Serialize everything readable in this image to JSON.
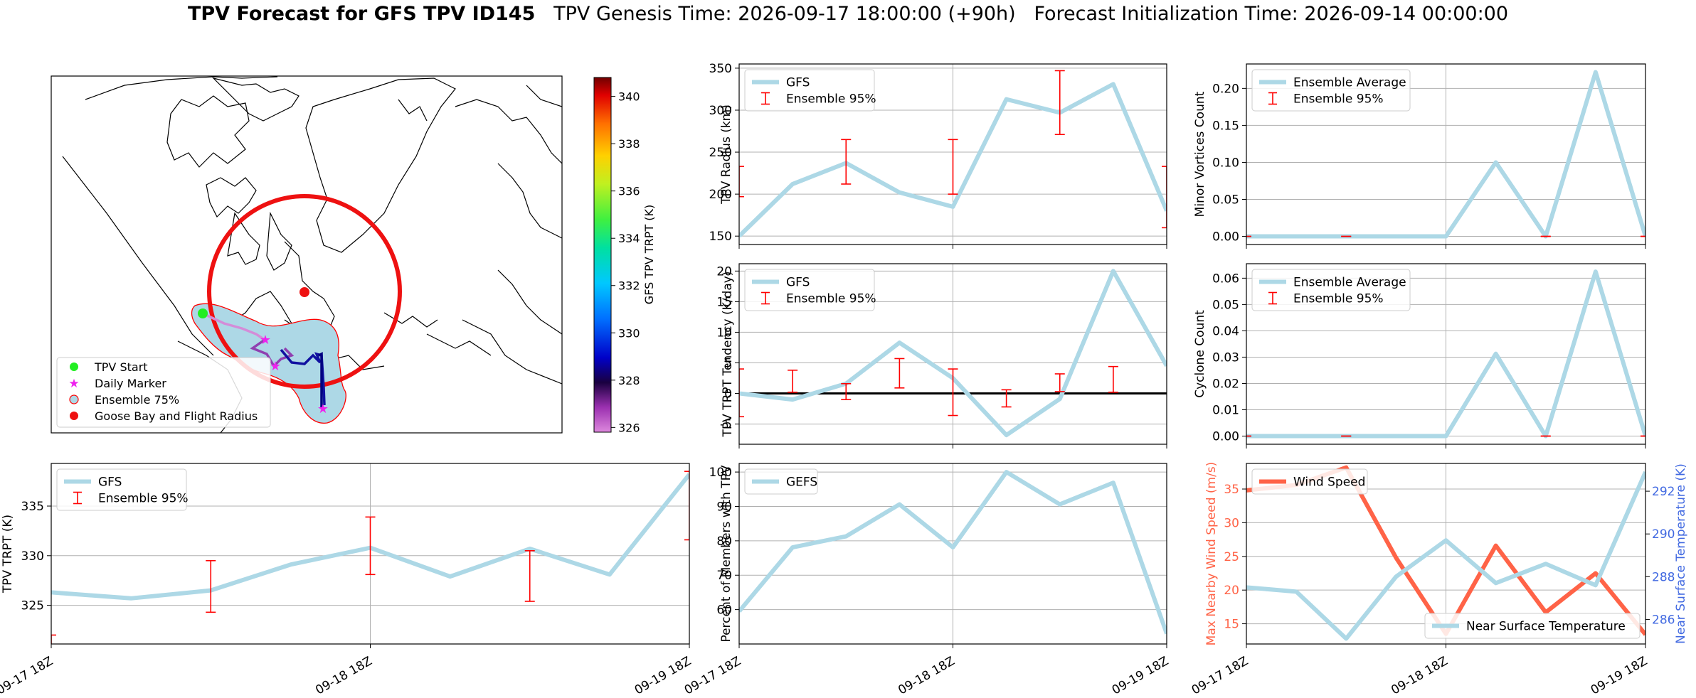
{
  "figure": {
    "title_bold": "TPV Forecast for GFS TPV ID145",
    "title_genesis": "TPV Genesis Time: 2026-09-17 18:00:00 (+90h)",
    "title_init": "Forecast Initialization Time: 2026-09-14 00:00:00"
  },
  "colors": {
    "gfs_line": "#add8e6",
    "errorbar": "#ff0000",
    "wind_line": "#ff6347",
    "temp_label": "#4169e1"
  },
  "map": {
    "colorbar_label": "GFS TPV TRPT (K)",
    "colorbar_ticks": [
      "340",
      "338",
      "336",
      "334",
      "332",
      "330",
      "328",
      "326"
    ],
    "colorbar_range": [
      325.8,
      340.8
    ],
    "legend": [
      "TPV Start",
      "Daily Marker",
      "Ensemble 75%",
      "Goose Bay and Flight Radius"
    ],
    "icons": [
      "coastline-map",
      "green-start-dot",
      "magenta-star-marker",
      "red-circle-marker"
    ]
  },
  "chart_data": [
    {
      "id": "radius",
      "type": "line",
      "ylabel": "TPV Radius (km)",
      "ylim": [
        140,
        355
      ],
      "yticks": [
        150,
        200,
        250,
        300,
        350
      ],
      "xlim": [
        0,
        8
      ],
      "xticks": [
        0,
        4,
        8
      ],
      "xtick_labels": [
        "",
        "",
        ""
      ],
      "grid": true,
      "legend_placement": "upper-left",
      "series": [
        {
          "name": "GFS",
          "kind": "line",
          "x": [
            0,
            1,
            2,
            3,
            4,
            5,
            6,
            7,
            8
          ],
          "values": [
            150,
            212,
            237,
            202,
            185,
            313,
            297,
            331,
            180
          ]
        },
        {
          "name": "Ensemble 95%",
          "kind": "errorbar",
          "points": [
            {
              "x": 0,
              "low": 197,
              "high": 233
            },
            {
              "x": 2,
              "low": 212,
              "high": 265
            },
            {
              "x": 4,
              "low": 200,
              "high": 265
            },
            {
              "x": 6,
              "low": 271,
              "high": 347
            },
            {
              "x": 8,
              "low": 160,
              "high": 233
            }
          ]
        }
      ]
    },
    {
      "id": "minor",
      "type": "line",
      "ylabel": "Minor Vortices Count",
      "ylim": [
        -0.011,
        0.233
      ],
      "yticks": [
        0.0,
        0.05,
        0.1,
        0.15,
        0.2
      ],
      "ytick_labels": [
        "0.00",
        "0.05",
        "0.10",
        "0.15",
        "0.20"
      ],
      "xlim": [
        0,
        8
      ],
      "xticks": [
        0,
        4,
        8
      ],
      "xtick_labels": [
        "",
        "",
        ""
      ],
      "grid": true,
      "legend_placement": "upper-left",
      "series": [
        {
          "name": "Ensemble Average",
          "kind": "line",
          "x": [
            0,
            1,
            2,
            3,
            4,
            5,
            6,
            7,
            8
          ],
          "values": [
            0,
            0,
            0,
            0,
            0,
            0.1,
            0,
            0.222,
            0
          ]
        },
        {
          "name": "Ensemble 95%",
          "kind": "errorbar",
          "points": [
            {
              "x": 0,
              "low": 0,
              "high": 0
            },
            {
              "x": 2,
              "low": 0,
              "high": 0
            },
            {
              "x": 6,
              "low": 0,
              "high": 0
            },
            {
              "x": 8,
              "low": 0,
              "high": 0
            }
          ]
        }
      ]
    },
    {
      "id": "tendency",
      "type": "line",
      "ylabel": "TPV TRPT Tendency (K/day)",
      "ylim": [
        -8.3,
        21.2
      ],
      "yticks": [
        -5,
        0,
        5,
        10,
        15,
        20
      ],
      "xlim": [
        0,
        8
      ],
      "xticks": [
        0,
        4,
        8
      ],
      "xtick_labels": [
        "",
        "",
        ""
      ],
      "zero_line": 0,
      "grid": true,
      "legend_placement": "upper-left",
      "series": [
        {
          "name": "GFS",
          "kind": "line",
          "x": [
            0,
            1,
            2,
            3,
            4,
            5,
            6,
            7,
            8
          ],
          "values": [
            0,
            -1,
            1.6,
            8.3,
            2.5,
            -6.8,
            -0.9,
            20,
            4.5
          ]
        },
        {
          "name": "Ensemble 95%",
          "kind": "errorbar",
          "points": [
            {
              "x": 0,
              "low": -3.8,
              "high": 4.0
            },
            {
              "x": 1,
              "low": 0.2,
              "high": 3.8
            },
            {
              "x": 2,
              "low": -1.0,
              "high": 1.6
            },
            {
              "x": 3,
              "low": 0.9,
              "high": 5.7
            },
            {
              "x": 4,
              "low": -3.6,
              "high": 4.0
            },
            {
              "x": 5,
              "low": -2.2,
              "high": 0.6
            },
            {
              "x": 6,
              "low": 0.3,
              "high": 3.2
            },
            {
              "x": 7,
              "low": 0.2,
              "high": 4.4
            }
          ]
        }
      ]
    },
    {
      "id": "cyclone",
      "type": "line",
      "ylabel": "Cyclone Count",
      "ylim": [
        -0.0031,
        0.0655
      ],
      "yticks": [
        0.0,
        0.01,
        0.02,
        0.03,
        0.04,
        0.05,
        0.06
      ],
      "ytick_labels": [
        "0.00",
        "0.01",
        "0.02",
        "0.03",
        "0.04",
        "0.05",
        "0.06"
      ],
      "xlim": [
        0,
        8
      ],
      "xticks": [
        0,
        4,
        8
      ],
      "xtick_labels": [
        "",
        "",
        ""
      ],
      "grid": true,
      "legend_placement": "upper-left",
      "series": [
        {
          "name": "Ensemble Average",
          "kind": "line",
          "x": [
            0,
            1,
            2,
            3,
            4,
            5,
            6,
            7,
            8
          ],
          "values": [
            0,
            0,
            0,
            0,
            0,
            0.0313,
            0,
            0.0625,
            0
          ]
        },
        {
          "name": "Ensemble 95%",
          "kind": "errorbar",
          "points": [
            {
              "x": 0,
              "low": 0,
              "high": 0
            },
            {
              "x": 2,
              "low": 0,
              "high": 0
            },
            {
              "x": 6,
              "low": 0,
              "high": 0
            },
            {
              "x": 8,
              "low": 0,
              "high": 0
            }
          ]
        }
      ]
    },
    {
      "id": "trpt",
      "type": "line",
      "ylabel": "TPV TRPT (K)",
      "ylim": [
        321.1,
        339.3
      ],
      "yticks": [
        325,
        330,
        335
      ],
      "xlim": [
        0,
        8
      ],
      "xticks": [
        0,
        4,
        8
      ],
      "xtick_labels": [
        "09-17 18Z",
        "09-18 18Z",
        "09-19 18Z"
      ],
      "grid": true,
      "legend_placement": "upper-left",
      "series": [
        {
          "name": "GFS",
          "kind": "line",
          "x": [
            0,
            1,
            2,
            3,
            4,
            5,
            6,
            7,
            8
          ],
          "values": [
            326.3,
            325.7,
            326.5,
            329.1,
            330.8,
            327.9,
            330.7,
            328.1,
            338.2
          ]
        },
        {
          "name": "Ensemble 95%",
          "kind": "errorbar",
          "points": [
            {
              "x": 0,
              "low": 318.5,
              "high": 322.0
            },
            {
              "x": 2,
              "low": 324.3,
              "high": 329.5
            },
            {
              "x": 4,
              "low": 328.1,
              "high": 333.9
            },
            {
              "x": 6,
              "low": 325.4,
              "high": 330.5
            },
            {
              "x": 8,
              "low": 331.6,
              "high": 338.5
            }
          ]
        }
      ]
    },
    {
      "id": "percent",
      "type": "line",
      "ylabel": "Percent of Members with TPV",
      "ylim": [
        50,
        102.5
      ],
      "yticks": [
        60,
        70,
        80,
        90,
        100
      ],
      "xlim": [
        0,
        8
      ],
      "xticks": [
        0,
        4,
        8
      ],
      "xtick_labels": [
        "09-17 18Z",
        "09-18 18Z",
        "09-19 18Z"
      ],
      "grid": true,
      "legend_placement": "upper-left",
      "series": [
        {
          "name": "GEFS",
          "kind": "line",
          "x": [
            0,
            1,
            2,
            3,
            4,
            5,
            6,
            7,
            8
          ],
          "values": [
            59.5,
            78.1,
            81.3,
            90.6,
            78.1,
            100,
            90.6,
            96.9,
            53
          ]
        }
      ]
    },
    {
      "id": "wind",
      "type": "line",
      "ylabel": "Max Nearby Wind Speed (m/s)",
      "ylabel_right": "Near Surface Temperature (K)",
      "ylim": [
        12,
        38.8
      ],
      "yticks": [
        15,
        20,
        25,
        30,
        35
      ],
      "ylim_right": [
        284.85,
        293.3
      ],
      "yticks_right": [
        286,
        288,
        290,
        292
      ],
      "xlim": [
        0,
        8
      ],
      "xticks": [
        0,
        4,
        8
      ],
      "xtick_labels": [
        "09-17 18Z",
        "09-18 18Z",
        "09-19 18Z"
      ],
      "grid": true,
      "legend_placement": "upper-left",
      "legend_right_placement": "lower-right",
      "series": [
        {
          "name": "Wind Speed",
          "kind": "line",
          "axis": "left",
          "x": [
            0,
            1,
            2,
            3,
            4,
            5,
            6,
            7,
            8
          ],
          "values": [
            34.8,
            35.6,
            38.2,
            24.8,
            13.5,
            26.6,
            16.7,
            22.5,
            13.4
          ]
        },
        {
          "name": "Near Surface Temperature",
          "kind": "line",
          "axis": "right",
          "x": [
            0,
            1,
            2,
            3,
            4,
            5,
            6,
            7,
            8
          ],
          "values": [
            287.5,
            287.3,
            285.1,
            288.0,
            289.7,
            287.7,
            288.6,
            287.6,
            292.9
          ]
        }
      ]
    }
  ]
}
